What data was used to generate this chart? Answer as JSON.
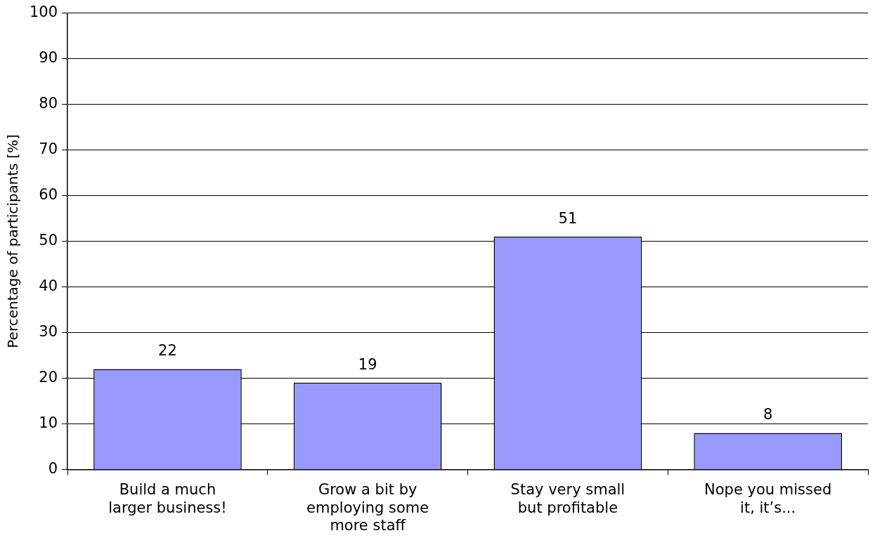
{
  "chart_data": {
    "type": "bar",
    "ylabel": "Percentage of participants [%]",
    "categories": [
      "Build a much larger business!",
      "Grow a bit by employing some more staff",
      "Stay very small but profitable",
      "Nope you missed it, it’s..."
    ],
    "values": [
      22,
      19,
      51,
      8
    ],
    "color": "#9999ff",
    "ylim": [
      0,
      100
    ],
    "yticks": [
      0,
      10,
      20,
      30,
      40,
      50,
      60,
      70,
      80,
      90,
      100
    ],
    "grid": "y",
    "data_labels": true,
    "legend": false
  }
}
